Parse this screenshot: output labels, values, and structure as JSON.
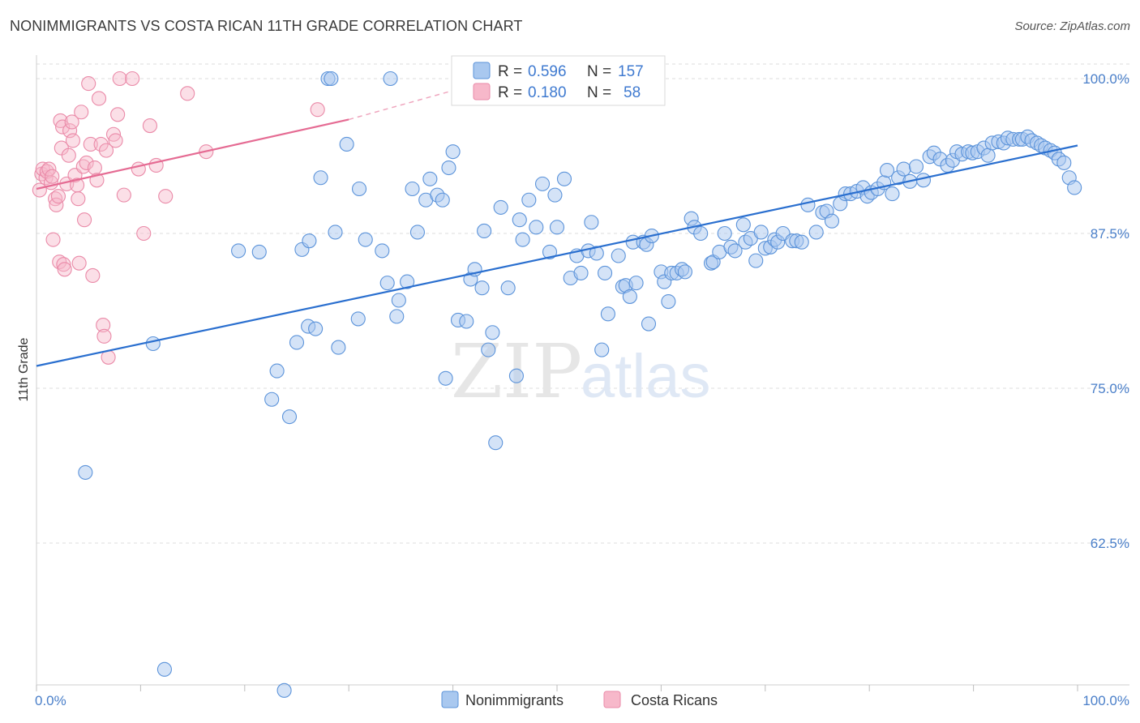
{
  "title": "NONIMMIGRANTS VS COSTA RICAN 11TH GRADE CORRELATION CHART",
  "source": "Source: ZipAtlas.com",
  "watermark": {
    "zip": "ZIP",
    "atlas": "atlas"
  },
  "colors": {
    "blue_fill": "#a9c8ef",
    "blue_stroke": "#5b93da",
    "blue_line": "#2a6fcf",
    "pink_fill": "#f7b8ca",
    "pink_stroke": "#ea8aa8",
    "pink_line": "#e56b93",
    "tick_text": "#4a7fc9",
    "grid": "#dcdcdc"
  },
  "legend": {
    "rows": [
      {
        "r_label": "R =",
        "r_value": "0.596",
        "n_label": "N =",
        "n_value": "157"
      },
      {
        "r_label": "R =",
        "r_value": "0.180",
        "n_label": "N =",
        "n_value": "58"
      }
    ]
  },
  "bottom_legend": [
    "Nonimmigrants",
    "Costa Ricans"
  ],
  "chart_data": {
    "type": "scatter",
    "xlabel": "",
    "ylabel": "11th Grade",
    "xlim": [
      0,
      100
    ],
    "ylim": [
      50.5,
      102
    ],
    "x_tick_labels": [
      {
        "value": 0,
        "label": "0.0%"
      },
      {
        "value": 100,
        "label": "100.0%"
      }
    ],
    "y_tick_labels": [
      {
        "value": 100,
        "label": "100.0%"
      },
      {
        "value": 87.5,
        "label": "87.5%"
      },
      {
        "value": 75,
        "label": "75.0%"
      },
      {
        "value": 62.5,
        "label": "62.5%"
      }
    ],
    "grid": "horizontal dashed",
    "legend_position": "top-center",
    "series": [
      {
        "name": "Nonimmigrants",
        "color": "#5b93da",
        "trend": {
          "x": [
            0,
            100
          ],
          "y": [
            76.8,
            94.6
          ]
        },
        "points": [
          [
            4.7,
            68.2
          ],
          [
            11.2,
            78.6
          ],
          [
            12.3,
            52.3
          ],
          [
            19.4,
            86.1
          ],
          [
            21.4,
            86.0
          ],
          [
            22.6,
            74.1
          ],
          [
            23.1,
            76.4
          ],
          [
            23.8,
            50.6
          ],
          [
            24.3,
            72.7
          ],
          [
            25.0,
            78.7
          ],
          [
            25.5,
            86.2
          ],
          [
            26.1,
            80.0
          ],
          [
            26.2,
            86.9
          ],
          [
            26.8,
            79.8
          ],
          [
            27.3,
            92.0
          ],
          [
            28.0,
            100.0
          ],
          [
            28.3,
            100.0
          ],
          [
            28.7,
            87.6
          ],
          [
            29.0,
            78.3
          ],
          [
            29.8,
            94.7
          ],
          [
            30.9,
            80.6
          ],
          [
            31.0,
            91.1
          ],
          [
            31.6,
            87.0
          ],
          [
            33.2,
            86.1
          ],
          [
            33.7,
            83.5
          ],
          [
            34.0,
            100.0
          ],
          [
            34.6,
            80.8
          ],
          [
            34.8,
            82.1
          ],
          [
            35.6,
            83.6
          ],
          [
            36.1,
            91.1
          ],
          [
            36.6,
            87.6
          ],
          [
            37.4,
            90.2
          ],
          [
            37.8,
            91.9
          ],
          [
            38.5,
            90.6
          ],
          [
            39.0,
            90.2
          ],
          [
            39.3,
            75.8
          ],
          [
            39.6,
            92.8
          ],
          [
            40.0,
            94.1
          ],
          [
            40.5,
            80.5
          ],
          [
            41.3,
            80.4
          ],
          [
            41.7,
            83.8
          ],
          [
            42.1,
            84.6
          ],
          [
            42.8,
            83.1
          ],
          [
            43.0,
            87.7
          ],
          [
            43.4,
            78.1
          ],
          [
            43.8,
            79.5
          ],
          [
            44.1,
            70.6
          ],
          [
            44.6,
            89.6
          ],
          [
            45.3,
            83.1
          ],
          [
            46.1,
            76.0
          ],
          [
            46.4,
            88.6
          ],
          [
            46.7,
            87.0
          ],
          [
            47.3,
            90.2
          ],
          [
            48.0,
            88.0
          ],
          [
            48.6,
            91.5
          ],
          [
            49.3,
            86.0
          ],
          [
            49.8,
            90.6
          ],
          [
            50.0,
            88.0
          ],
          [
            50.7,
            91.9
          ],
          [
            51.3,
            83.9
          ],
          [
            51.9,
            85.7
          ],
          [
            52.3,
            84.3
          ],
          [
            53.0,
            86.1
          ],
          [
            53.3,
            88.4
          ],
          [
            53.8,
            85.9
          ],
          [
            54.3,
            78.1
          ],
          [
            54.6,
            84.3
          ],
          [
            54.9,
            81.0
          ],
          [
            55.9,
            85.7
          ],
          [
            56.3,
            83.2
          ],
          [
            56.6,
            83.3
          ],
          [
            57.0,
            82.4
          ],
          [
            57.3,
            86.8
          ],
          [
            57.6,
            83.5
          ],
          [
            58.3,
            86.8
          ],
          [
            58.6,
            86.6
          ],
          [
            58.8,
            80.2
          ],
          [
            59.1,
            87.3
          ],
          [
            60.0,
            84.4
          ],
          [
            60.3,
            83.6
          ],
          [
            60.7,
            82.0
          ],
          [
            61.0,
            84.3
          ],
          [
            61.5,
            84.3
          ],
          [
            62.0,
            84.6
          ],
          [
            62.3,
            84.4
          ],
          [
            62.9,
            88.7
          ],
          [
            63.2,
            88.0
          ],
          [
            63.8,
            87.5
          ],
          [
            64.8,
            85.1
          ],
          [
            65.0,
            85.2
          ],
          [
            65.6,
            86.0
          ],
          [
            66.1,
            87.5
          ],
          [
            66.7,
            86.4
          ],
          [
            67.1,
            86.1
          ],
          [
            67.9,
            88.2
          ],
          [
            68.1,
            86.8
          ],
          [
            68.6,
            87.1
          ],
          [
            69.1,
            85.3
          ],
          [
            69.6,
            87.6
          ],
          [
            70.0,
            86.3
          ],
          [
            70.5,
            86.4
          ],
          [
            70.9,
            87.0
          ],
          [
            71.2,
            86.8
          ],
          [
            71.7,
            87.5
          ],
          [
            72.6,
            86.9
          ],
          [
            73.0,
            86.9
          ],
          [
            73.5,
            86.8
          ],
          [
            74.1,
            89.8
          ],
          [
            74.9,
            87.6
          ],
          [
            75.5,
            89.2
          ],
          [
            75.9,
            89.3
          ],
          [
            76.4,
            88.5
          ],
          [
            77.2,
            89.9
          ],
          [
            77.7,
            90.7
          ],
          [
            78.2,
            90.7
          ],
          [
            78.8,
            90.9
          ],
          [
            79.4,
            91.2
          ],
          [
            79.8,
            90.5
          ],
          [
            80.2,
            90.8
          ],
          [
            80.8,
            91.1
          ],
          [
            81.4,
            91.6
          ],
          [
            81.7,
            92.6
          ],
          [
            82.2,
            90.7
          ],
          [
            82.8,
            92.0
          ],
          [
            83.3,
            92.7
          ],
          [
            83.9,
            91.7
          ],
          [
            84.5,
            92.9
          ],
          [
            85.2,
            91.8
          ],
          [
            85.8,
            93.7
          ],
          [
            86.2,
            94.0
          ],
          [
            86.8,
            93.5
          ],
          [
            87.5,
            93.0
          ],
          [
            88.0,
            93.4
          ],
          [
            88.4,
            94.1
          ],
          [
            88.9,
            93.9
          ],
          [
            89.5,
            94.1
          ],
          [
            89.9,
            94.0
          ],
          [
            90.4,
            94.1
          ],
          [
            91.0,
            94.4
          ],
          [
            91.4,
            93.8
          ],
          [
            91.8,
            94.8
          ],
          [
            92.4,
            94.9
          ],
          [
            92.9,
            94.8
          ],
          [
            93.3,
            95.2
          ],
          [
            93.8,
            95.1
          ],
          [
            94.4,
            95.1
          ],
          [
            94.7,
            95.1
          ],
          [
            95.2,
            95.3
          ],
          [
            95.6,
            95.0
          ],
          [
            96.1,
            94.8
          ],
          [
            96.5,
            94.6
          ],
          [
            96.9,
            94.4
          ],
          [
            97.4,
            94.2
          ],
          [
            97.8,
            94.0
          ],
          [
            98.2,
            93.5
          ],
          [
            98.7,
            93.2
          ],
          [
            99.2,
            92.0
          ],
          [
            99.7,
            91.2
          ]
        ]
      },
      {
        "name": "Costa Ricans",
        "color": "#ea8aa8",
        "trend": {
          "x": [
            0,
            30
          ],
          "y": [
            91.1,
            96.7
          ]
        },
        "trend_dashed": {
          "x": [
            30,
            42
          ],
          "y": [
            96.7,
            99.5
          ]
        },
        "points": [
          [
            0.3,
            91.0
          ],
          [
            0.5,
            92.3
          ],
          [
            0.6,
            92.7
          ],
          [
            0.9,
            92.0
          ],
          [
            1.0,
            92.5
          ],
          [
            1.2,
            92.7
          ],
          [
            1.4,
            91.6
          ],
          [
            1.5,
            92.1
          ],
          [
            1.6,
            87.0
          ],
          [
            1.8,
            90.3
          ],
          [
            1.9,
            89.8
          ],
          [
            2.1,
            90.5
          ],
          [
            2.2,
            85.2
          ],
          [
            2.3,
            96.6
          ],
          [
            2.4,
            94.4
          ],
          [
            2.5,
            96.1
          ],
          [
            2.6,
            85.0
          ],
          [
            2.7,
            84.6
          ],
          [
            2.9,
            91.5
          ],
          [
            3.1,
            93.8
          ],
          [
            3.2,
            95.8
          ],
          [
            3.4,
            96.5
          ],
          [
            3.5,
            95.0
          ],
          [
            3.7,
            92.2
          ],
          [
            3.9,
            91.4
          ],
          [
            4.0,
            90.3
          ],
          [
            4.1,
            85.1
          ],
          [
            4.3,
            97.3
          ],
          [
            4.5,
            92.9
          ],
          [
            4.6,
            88.6
          ],
          [
            4.8,
            93.2
          ],
          [
            5.0,
            99.6
          ],
          [
            5.2,
            94.7
          ],
          [
            5.4,
            84.1
          ],
          [
            5.6,
            92.8
          ],
          [
            5.8,
            91.8
          ],
          [
            6.0,
            98.4
          ],
          [
            6.2,
            94.7
          ],
          [
            6.4,
            80.1
          ],
          [
            6.5,
            79.2
          ],
          [
            6.7,
            94.2
          ],
          [
            6.9,
            77.5
          ],
          [
            7.4,
            95.5
          ],
          [
            7.6,
            95.0
          ],
          [
            7.8,
            97.1
          ],
          [
            8.0,
            100.0
          ],
          [
            8.4,
            90.6
          ],
          [
            9.2,
            100.0
          ],
          [
            9.8,
            92.7
          ],
          [
            10.3,
            87.5
          ],
          [
            10.9,
            96.2
          ],
          [
            11.5,
            93.0
          ],
          [
            12.4,
            90.5
          ],
          [
            14.5,
            98.8
          ],
          [
            16.3,
            94.1
          ],
          [
            27.0,
            97.5
          ]
        ]
      }
    ]
  }
}
